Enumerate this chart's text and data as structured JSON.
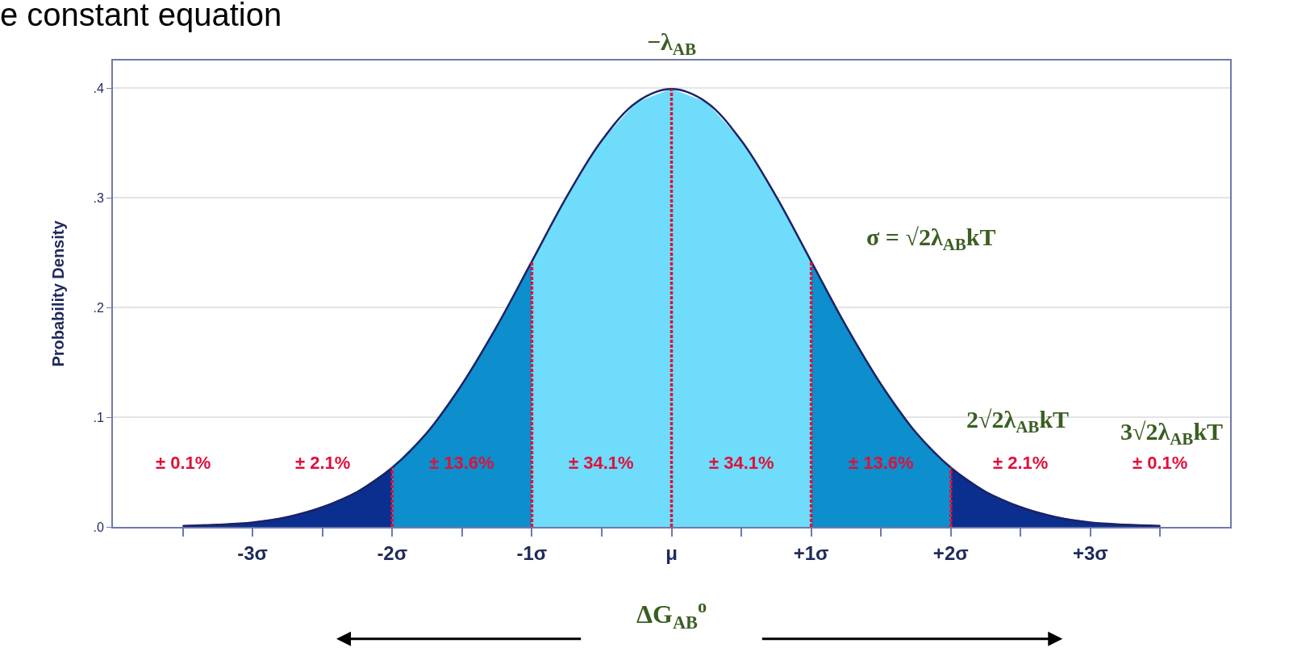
{
  "chart_data": {
    "type": "area",
    "title": "e constant equation",
    "ylabel": "Probability Density",
    "xlim": [
      -4,
      4
    ],
    "xticks": [
      {
        "value": -3.5,
        "label": null
      },
      {
        "value": -3,
        "label": "-3σ"
      },
      {
        "value": -2.5,
        "label": null
      },
      {
        "value": -2,
        "label": "-2σ"
      },
      {
        "value": -1.5,
        "label": null
      },
      {
        "value": -1,
        "label": "-1σ"
      },
      {
        "value": -0.5,
        "label": null
      },
      {
        "value": 0,
        "label": "μ"
      },
      {
        "value": 0.5,
        "label": null
      },
      {
        "value": 1,
        "label": "+1σ"
      },
      {
        "value": 1.5,
        "label": null
      },
      {
        "value": 2,
        "label": "+2σ"
      },
      {
        "value": 2.5,
        "label": null
      },
      {
        "value": 3,
        "label": "+3σ"
      },
      {
        "value": 3.5,
        "label": null
      }
    ],
    "ylim": [
      0,
      0.425
    ],
    "yticks": [
      {
        "value": 0,
        "label": ".0"
      },
      {
        "value": 0.1,
        "label": ".1"
      },
      {
        "value": 0.2,
        "label": ".2"
      },
      {
        "value": 0.3,
        "label": ".3"
      },
      {
        "value": 0.4,
        "label": ".4"
      }
    ],
    "grid": "y",
    "series": [
      {
        "color": "#0a2f8f",
        "x": [
          -3.5,
          -3.25,
          -3,
          -2.75,
          -2.5,
          -2.25,
          -2
        ],
        "values": [
          0.001,
          0.002,
          0.004,
          0.009,
          0.018,
          0.032,
          0.054
        ]
      },
      {
        "color": "#0c8fcc",
        "x": [
          -2,
          -1.75,
          -1.5,
          -1.25,
          -1
        ],
        "values": [
          0.054,
          0.086,
          0.13,
          0.183,
          0.242
        ]
      },
      {
        "color": "#6fdcfb",
        "x": [
          -1,
          -0.75,
          -0.5,
          -0.25,
          0,
          0.25,
          0.5,
          0.75,
          1
        ],
        "values": [
          0.242,
          0.301,
          0.352,
          0.387,
          0.399,
          0.387,
          0.352,
          0.301,
          0.242
        ]
      },
      {
        "color": "#0c8fcc",
        "x": [
          1,
          1.25,
          1.5,
          1.75,
          2
        ],
        "values": [
          0.242,
          0.183,
          0.13,
          0.086,
          0.054
        ]
      },
      {
        "color": "#0a2f8f",
        "x": [
          2,
          2.25,
          2.5,
          2.75,
          3,
          3.25,
          3.5
        ],
        "values": [
          0.054,
          0.032,
          0.018,
          0.009,
          0.004,
          0.002,
          0.001
        ]
      },
      {
        "type": "line",
        "color": "#1c2266",
        "line_style": "solid",
        "x": [
          -3.5,
          -3.25,
          -3,
          -2.75,
          -2.5,
          -2.25,
          -2,
          -1.75,
          -1.5,
          -1.25,
          -1,
          -0.75,
          -0.5,
          -0.25,
          0,
          0.25,
          0.5,
          0.75,
          1,
          1.25,
          1.5,
          1.75,
          2,
          2.25,
          2.5,
          2.75,
          3,
          3.25,
          3.5
        ],
        "values": [
          0.001,
          0.002,
          0.004,
          0.009,
          0.018,
          0.032,
          0.054,
          0.086,
          0.13,
          0.183,
          0.242,
          0.301,
          0.352,
          0.387,
          0.399,
          0.387,
          0.352,
          0.301,
          0.242,
          0.183,
          0.13,
          0.086,
          0.054,
          0.032,
          0.018,
          0.009,
          0.004,
          0.002,
          0.001
        ]
      },
      {
        "type": "line",
        "color": "#d9163c",
        "line_style": "dotted",
        "x": [
          -2,
          -2
        ],
        "values": [
          0,
          0.054
        ]
      },
      {
        "type": "line",
        "color": "#d9163c",
        "line_style": "dotted",
        "x": [
          -1,
          -1
        ],
        "values": [
          0,
          0.242
        ]
      },
      {
        "type": "line",
        "color": "#d9163c",
        "line_style": "dotted",
        "x": [
          0,
          0
        ],
        "values": [
          0,
          0.399
        ]
      },
      {
        "type": "line",
        "color": "#d9163c",
        "line_style": "dotted",
        "x": [
          1,
          1
        ],
        "values": [
          0,
          0.242
        ]
      },
      {
        "type": "line",
        "color": "#d9163c",
        "line_style": "dotted",
        "x": [
          2,
          2
        ],
        "values": [
          0,
          0.054
        ]
      }
    ],
    "annotations": [
      "± 0.1%",
      "± 2.1%",
      "± 13.6%",
      "± 34.1%",
      "± 34.1%",
      "± 13.6%",
      "± 2.1%",
      "± 0.1%",
      "−λ$_{AB}$",
      "σ = √2λ$_{AB}$kT",
      "2√2λ$_{AB}$kT",
      "3√2λ$_{AB}$kT",
      "ΔG$_{AB}$$^{o}$"
    ]
  }
}
